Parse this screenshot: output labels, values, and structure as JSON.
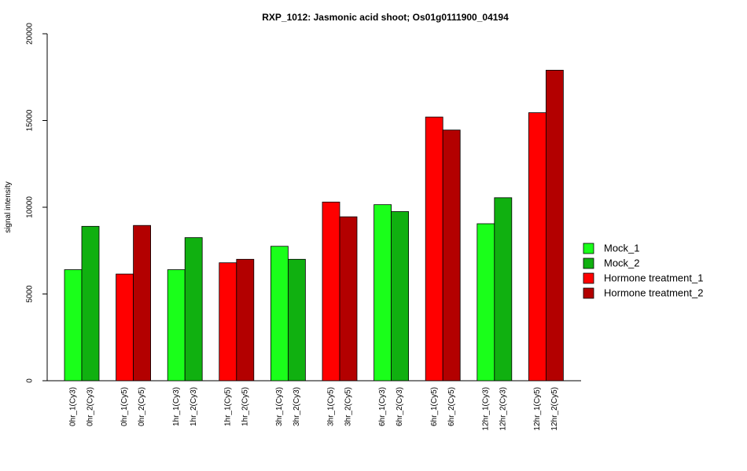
{
  "chart_data": {
    "type": "bar",
    "title": "RXP_1012: Jasmonic acid shoot; Os01g0111900_04194",
    "xlabel": "",
    "ylabel": "signal intensity",
    "ylim": [
      0,
      20000
    ],
    "yticks": [
      0,
      5000,
      10000,
      15000,
      20000
    ],
    "grid": false,
    "legend_position": "right",
    "categories": [
      "0hr_1(Cy3)",
      "0hr_2(Cy3)",
      "0hr_1(Cy5)",
      "0hr_2(Cy5)",
      "1hr_1(Cy3)",
      "1hr_2(Cy3)",
      "1hr_1(Cy5)",
      "1hr_2(Cy5)",
      "3hr_1(Cy3)",
      "3hr_2(Cy3)",
      "3hr_1(Cy5)",
      "3hr_2(Cy5)",
      "6hr_1(Cy3)",
      "6hr_2(Cy3)",
      "6hr_1(Cy5)",
      "6hr_2(Cy5)",
      "12hr_1(Cy3)",
      "12hr_2(Cy3)",
      "12hr_1(Cy5)",
      "12hr_2(Cy5)"
    ],
    "values": [
      6400,
      8900,
      6150,
      8950,
      6400,
      8250,
      6800,
      7000,
      7750,
      7000,
      10300,
      9450,
      10150,
      9750,
      15200,
      14450,
      9050,
      10550,
      15450,
      17900
    ],
    "bar_series": [
      0,
      1,
      2,
      3,
      0,
      1,
      2,
      3,
      0,
      1,
      2,
      3,
      0,
      1,
      2,
      3,
      0,
      1,
      2,
      3
    ],
    "series": [
      {
        "name": "Mock_1",
        "color": "#1aff1a"
      },
      {
        "name": "Mock_2",
        "color": "#10b010"
      },
      {
        "name": "Hormone treatment_1",
        "color": "#ff0000"
      },
      {
        "name": "Hormone treatment_2",
        "color": "#b30000"
      }
    ]
  }
}
